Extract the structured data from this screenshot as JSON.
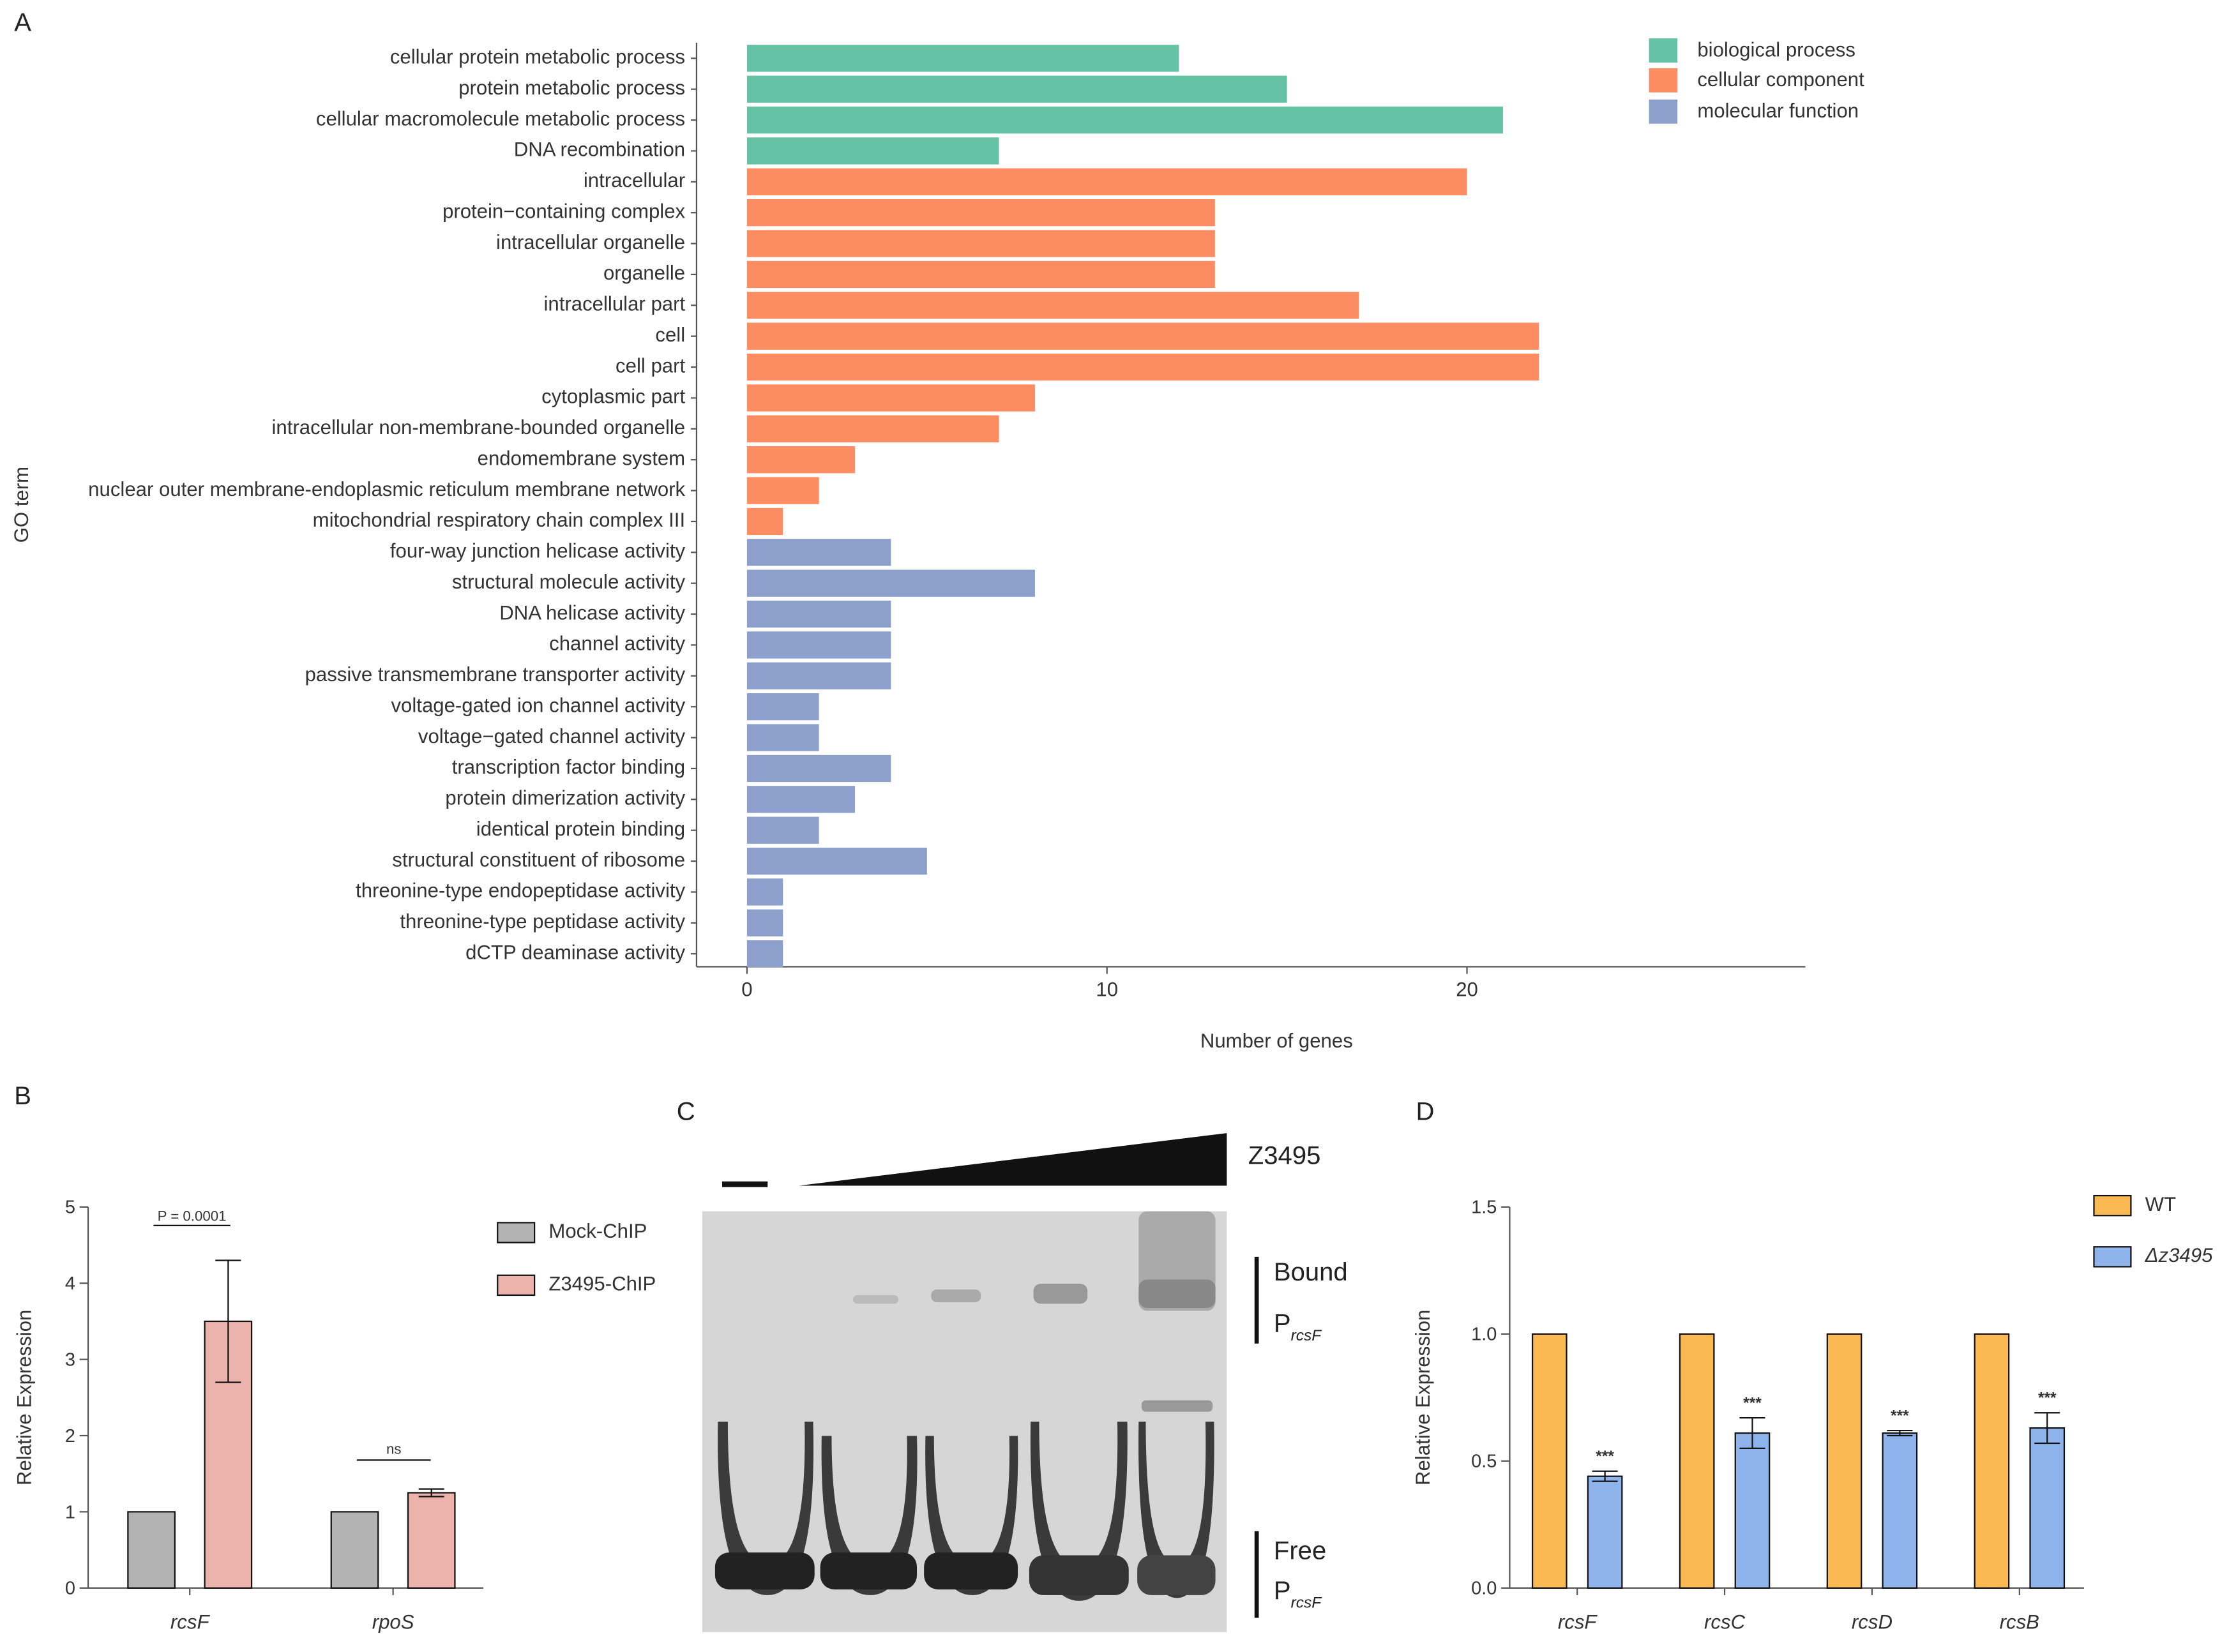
{
  "panel_labels": [
    "A",
    "B",
    "C",
    "D"
  ],
  "chart_data": [
    {
      "type": "hbar",
      "xlabel": "Number of genes",
      "ylabel": "GO term",
      "categories": [
        "cellular protein metabolic process",
        "protein metabolic process",
        "cellular macromolecule metabolic process",
        "DNA recombination",
        "intracellular",
        "protein−containing complex",
        "intracellular organelle",
        "organelle",
        "intracellular part",
        "cell",
        "cell part",
        "cytoplasmic part",
        "intracellular non-membrane-bounded organelle",
        "endomembrane system",
        "nuclear outer membrane-endoplasmic reticulum membrane network",
        "mitochondrial respiratory chain complex III",
        "four-way junction helicase activity",
        "structural molecule activity",
        "DNA helicase activity",
        "channel activity",
        "passive transmembrane transporter activity",
        "voltage-gated ion channel activity",
        "voltage−gated channel activity",
        "transcription factor binding",
        "protein dimerization activity",
        "identical protein binding",
        "structural constituent of ribosome",
        "threonine-type endopeptidase activity",
        "threonine-type peptidase activity",
        "dCTP deaminase activity"
      ],
      "series": [
        {
          "name": "biological process",
          "color": "#66c2a5",
          "values": [
            12,
            15,
            21,
            7,
            null,
            null,
            null,
            null,
            null,
            null,
            null,
            null,
            null,
            null,
            null,
            null,
            null,
            null,
            null,
            null,
            null,
            null,
            null,
            null,
            null,
            null,
            null,
            null,
            null,
            null
          ]
        },
        {
          "name": "cellular component",
          "color": "#fc8d62",
          "values": [
            null,
            null,
            null,
            null,
            20,
            13,
            13,
            13,
            17,
            22,
            22,
            8,
            7,
            3,
            2,
            1,
            null,
            null,
            null,
            null,
            null,
            null,
            null,
            null,
            null,
            null,
            null,
            null,
            null,
            null
          ]
        },
        {
          "name": "molecular function",
          "color": "#8da0cb",
          "values": [
            null,
            null,
            null,
            null,
            null,
            null,
            null,
            null,
            null,
            null,
            null,
            null,
            null,
            null,
            null,
            null,
            4,
            8,
            4,
            4,
            4,
            2,
            2,
            4,
            3,
            2,
            5,
            1,
            1,
            1
          ]
        }
      ],
      "xlim": [
        -1.4,
        29.4
      ],
      "xticks": [
        0,
        10,
        20
      ],
      "legend": "top-right"
    },
    {
      "type": "grouped-bar",
      "ylabel": "Relative Expression",
      "categories": [
        "rcsF",
        "rpoS"
      ],
      "series": [
        {
          "name": "Mock-ChIP",
          "color": "#b3b3b3",
          "values": [
            1,
            1
          ]
        },
        {
          "name": "Z3495-ChIP",
          "color": "#ebb3ab",
          "values": [
            3.5,
            1.25
          ],
          "errors": [
            0.8,
            0.05
          ]
        }
      ],
      "annotations": [
        "P = 0.0001",
        "ns"
      ],
      "ylim": [
        0,
        5
      ],
      "yticks": [
        0,
        1,
        2,
        3,
        4,
        5
      ],
      "legend": "right"
    },
    {
      "type": "grouped-bar",
      "ylabel": "Relative Expression",
      "categories": [
        "rcsF",
        "rcsC",
        "rcsD",
        "rcsB"
      ],
      "series": [
        {
          "name": "WT",
          "color": "#fbb954",
          "values": [
            1,
            1,
            1,
            1
          ]
        },
        {
          "name": "Δz3495",
          "color": "#8fb4ec",
          "values": [
            0.44,
            0.61,
            0.61,
            0.63
          ],
          "errors": [
            0.02,
            0.06,
            0.01,
            0.06
          ]
        }
      ],
      "annotations": [
        "***",
        "***",
        "***",
        "***"
      ],
      "ylim": [
        0,
        1.5
      ],
      "yticks": [
        {
          "value": 0,
          "label": "0.0"
        },
        {
          "value": 0.5,
          "label": "0.5"
        },
        {
          "value": 1,
          "label": "1.0"
        },
        {
          "value": 1.5,
          "label": "1.5"
        }
      ],
      "legend": "top-right"
    }
  ],
  "gel": {
    "treatment": "Z3495",
    "bound_label": "Bound",
    "free_label": "Free",
    "probe": "P",
    "probe_subscript": "rcsF"
  }
}
